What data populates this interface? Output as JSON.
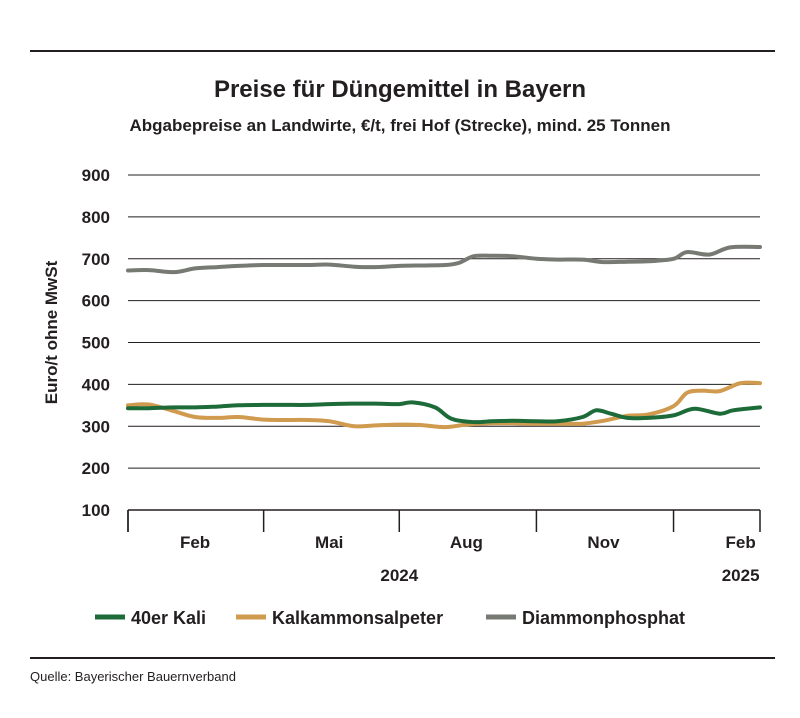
{
  "header": {
    "title": "Preise für Düngemittel in Bayern",
    "subtitle": "Abgabepreise an Landwirte, €/t, frei Hof (Strecke), mind. 25 Tonnen"
  },
  "footer": {
    "source": "Quelle: Bayerischer Bauernverband"
  },
  "chart_data": {
    "type": "line",
    "title": "Preise für Düngemittel in Bayern",
    "subtitle": "Abgabepreise an Landwirte, €/t, frei Hof (Strecke), mind. 25 Tonnen",
    "ylabel": "Euro/t ohne MwSt",
    "xlabel": "",
    "ylim": [
      100,
      900
    ],
    "yticks": [
      100,
      200,
      300,
      400,
      500,
      600,
      700,
      800,
      900
    ],
    "xlim": [
      "2024-01-01",
      "2025-02-28"
    ],
    "month_ticks": [
      "2024-01-01",
      "2024-04-01",
      "2024-07-01",
      "2024-10-01",
      "2025-01-01",
      "2025-03-01"
    ],
    "month_labels": [
      {
        "label": "Feb",
        "date": "2024-02-15"
      },
      {
        "label": "Mai",
        "date": "2024-05-15"
      },
      {
        "label": "Aug",
        "date": "2024-08-15"
      },
      {
        "label": "Nov",
        "date": "2024-11-15"
      },
      {
        "label": "Feb",
        "date": "2025-02-15"
      }
    ],
    "year_labels": [
      {
        "label": "2024",
        "date": "2024-07-01"
      },
      {
        "label": "2025",
        "date": "2025-02-15"
      }
    ],
    "grid": true,
    "legend_position": "bottom",
    "series": [
      {
        "name": "40er Kali",
        "color": "#1e6b3a",
        "points": [
          [
            "2024-01-01",
            343
          ],
          [
            "2024-01-15",
            343
          ],
          [
            "2024-02-01",
            345
          ],
          [
            "2024-02-15",
            345
          ],
          [
            "2024-03-01",
            347
          ],
          [
            "2024-03-15",
            350
          ],
          [
            "2024-04-01",
            351
          ],
          [
            "2024-04-15",
            351
          ],
          [
            "2024-05-01",
            351
          ],
          [
            "2024-05-15",
            353
          ],
          [
            "2024-06-01",
            354
          ],
          [
            "2024-06-15",
            354
          ],
          [
            "2024-07-01",
            353
          ],
          [
            "2024-07-10",
            357
          ],
          [
            "2024-07-25",
            345
          ],
          [
            "2024-08-05",
            318
          ],
          [
            "2024-08-20",
            310
          ],
          [
            "2024-09-01",
            312
          ],
          [
            "2024-09-15",
            313
          ],
          [
            "2024-10-01",
            312
          ],
          [
            "2024-10-15",
            312
          ],
          [
            "2024-11-01",
            322
          ],
          [
            "2024-11-10",
            338
          ],
          [
            "2024-11-20",
            330
          ],
          [
            "2024-12-01",
            320
          ],
          [
            "2024-12-15",
            320
          ],
          [
            "2025-01-01",
            326
          ],
          [
            "2025-01-15",
            342
          ],
          [
            "2025-02-01",
            330
          ],
          [
            "2025-02-10",
            338
          ],
          [
            "2025-02-28",
            345
          ]
        ]
      },
      {
        "name": "Kalkammonsalpeter",
        "color": "#d09a4f",
        "points": [
          [
            "2024-01-01",
            350
          ],
          [
            "2024-01-15",
            352
          ],
          [
            "2024-02-01",
            336
          ],
          [
            "2024-02-15",
            322
          ],
          [
            "2024-03-01",
            320
          ],
          [
            "2024-03-15",
            322
          ],
          [
            "2024-04-01",
            316
          ],
          [
            "2024-04-15",
            315
          ],
          [
            "2024-05-01",
            315
          ],
          [
            "2024-05-15",
            312
          ],
          [
            "2024-06-01",
            300
          ],
          [
            "2024-06-15",
            302
          ],
          [
            "2024-07-01",
            304
          ],
          [
            "2024-07-15",
            303
          ],
          [
            "2024-08-01",
            298
          ],
          [
            "2024-08-15",
            304
          ],
          [
            "2024-09-01",
            307
          ],
          [
            "2024-09-15",
            307
          ],
          [
            "2024-10-01",
            306
          ],
          [
            "2024-10-15",
            306
          ],
          [
            "2024-11-01",
            306
          ],
          [
            "2024-11-15",
            313
          ],
          [
            "2024-12-01",
            325
          ],
          [
            "2024-12-15",
            328
          ],
          [
            "2025-01-01",
            348
          ],
          [
            "2025-01-10",
            380
          ],
          [
            "2025-01-20",
            385
          ],
          [
            "2025-02-01",
            384
          ],
          [
            "2025-02-15",
            403
          ],
          [
            "2025-02-28",
            403
          ]
        ]
      },
      {
        "name": "Diammonphosphat",
        "color": "#767a73",
        "points": [
          [
            "2024-01-01",
            672
          ],
          [
            "2024-01-15",
            673
          ],
          [
            "2024-02-01",
            668
          ],
          [
            "2024-02-15",
            677
          ],
          [
            "2024-03-01",
            680
          ],
          [
            "2024-03-15",
            683
          ],
          [
            "2024-04-01",
            685
          ],
          [
            "2024-04-15",
            685
          ],
          [
            "2024-05-01",
            685
          ],
          [
            "2024-05-15",
            686
          ],
          [
            "2024-06-01",
            681
          ],
          [
            "2024-06-15",
            680
          ],
          [
            "2024-07-01",
            683
          ],
          [
            "2024-07-15",
            684
          ],
          [
            "2024-08-01",
            685
          ],
          [
            "2024-08-10",
            690
          ],
          [
            "2024-08-20",
            706
          ],
          [
            "2024-09-01",
            707
          ],
          [
            "2024-09-15",
            706
          ],
          [
            "2024-10-01",
            700
          ],
          [
            "2024-10-15",
            698
          ],
          [
            "2024-11-01",
            698
          ],
          [
            "2024-11-15",
            692
          ],
          [
            "2024-12-01",
            693
          ],
          [
            "2024-12-15",
            694
          ],
          [
            "2025-01-01",
            700
          ],
          [
            "2025-01-10",
            716
          ],
          [
            "2025-01-25",
            710
          ],
          [
            "2025-02-08",
            727
          ],
          [
            "2025-02-28",
            728
          ]
        ]
      }
    ]
  }
}
